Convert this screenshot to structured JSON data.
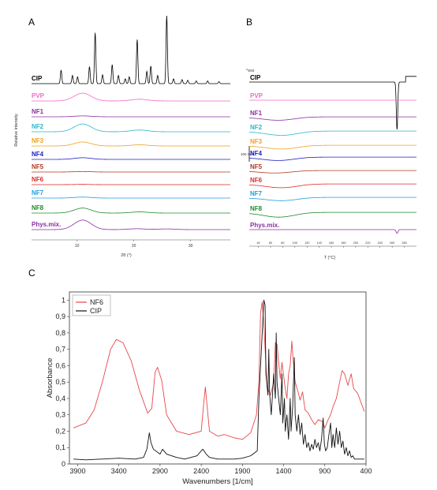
{
  "chart_data": [
    {
      "panel": "A",
      "type": "line",
      "xlabel": "2θ (°)",
      "ylabel": "Relative intensity",
      "xlim": [
        2,
        37
      ],
      "x_ticks": [
        10,
        20,
        30
      ],
      "series": [
        {
          "name": "CIP",
          "color": "#000000",
          "peaks": [
            [
              7.2,
              0.2
            ],
            [
              9.2,
              0.12
            ],
            [
              10.1,
              0.1
            ],
            [
              12.2,
              0.25
            ],
            [
              13.2,
              0.75
            ],
            [
              14.5,
              0.13
            ],
            [
              16.2,
              0.28
            ],
            [
              17.3,
              0.12
            ],
            [
              18.5,
              0.07
            ],
            [
              19.2,
              0.1
            ],
            [
              20.6,
              0.65
            ],
            [
              22.3,
              0.18
            ],
            [
              23.0,
              0.26
            ],
            [
              24.2,
              0.12
            ],
            [
              25.8,
              1.0
            ],
            [
              27.0,
              0.07
            ],
            [
              28.5,
              0.06
            ],
            [
              29.5,
              0.05
            ],
            [
              31.0,
              0.04
            ],
            [
              33.0,
              0.04
            ],
            [
              35.0,
              0.03
            ]
          ]
        },
        {
          "name": "PVP",
          "color": "#f06ac8",
          "peaks": [
            [
              11.0,
              0.45
            ],
            [
              21.0,
              0.1
            ]
          ]
        },
        {
          "name": "NF1",
          "color": "#8a2fa0",
          "peaks": [
            [
              11.0,
              0.08
            ]
          ]
        },
        {
          "name": "NF2",
          "color": "#2ab7c9",
          "peaks": [
            [
              11.0,
              0.45
            ],
            [
              21.0,
              0.1
            ]
          ]
        },
        {
          "name": "NF3",
          "color": "#f0a020",
          "peaks": [
            [
              11.0,
              0.28
            ],
            [
              21.0,
              0.08
            ]
          ]
        },
        {
          "name": "NF4",
          "color": "#1c1cc8",
          "peaks": [
            [
              11.0,
              0.15
            ]
          ]
        },
        {
          "name": "NF5",
          "color": "#b03a20",
          "peaks": [
            [
              11.0,
              0.06
            ]
          ]
        },
        {
          "name": "NF6",
          "color": "#e02a2a",
          "peaks": [
            [
              11.0,
              0.04
            ]
          ]
        },
        {
          "name": "NF7",
          "color": "#1aa0e0",
          "peaks": [
            [
              11.0,
              0.12
            ]
          ]
        },
        {
          "name": "NF8",
          "color": "#1f8a2a",
          "peaks": [
            [
              11.0,
              0.35
            ],
            [
              21.0,
              0.08
            ]
          ]
        },
        {
          "name": "Phys.mix.",
          "color": "#8a2fa0",
          "peaks": [
            [
              11.0,
              0.55
            ],
            [
              20.6,
              0.05
            ],
            [
              25.8,
              0.04
            ]
          ]
        }
      ]
    },
    {
      "panel": "B",
      "type": "line",
      "xlabel": "T (°C)",
      "annotation_top": "^exo",
      "scale_bar_text": "100\nmW",
      "xlim": [
        25,
        300
      ],
      "x_ticks": [
        40,
        60,
        80,
        100,
        120,
        140,
        160,
        180,
        200,
        220,
        240,
        260,
        280
      ],
      "series": [
        {
          "name": "CIP",
          "color": "#000000",
          "events": [
            {
              "T": 268,
              "depth": 10.0,
              "width": 1.2
            }
          ],
          "step": [
            {
              "T": 282,
              "dy": -1.2
            }
          ]
        },
        {
          "name": "PVP",
          "color": "#f06ac8",
          "events": []
        },
        {
          "name": "NF1",
          "color": "#8a2fa0",
          "events": [
            {
              "T": 75,
              "depth": 0.6,
              "width": 25
            }
          ]
        },
        {
          "name": "NF2",
          "color": "#2ab7c9",
          "events": [
            {
              "T": 80,
              "depth": 0.8,
              "width": 25
            }
          ]
        },
        {
          "name": "NF3",
          "color": "#f0a020",
          "events": [
            {
              "T": 80,
              "depth": 0.7,
              "width": 25
            }
          ]
        },
        {
          "name": "NF4",
          "color": "#1c1cc8",
          "events": [
            {
              "T": 75,
              "depth": 0.6,
              "width": 25
            }
          ]
        },
        {
          "name": "NF5",
          "color": "#b03a20",
          "events": [
            {
              "T": 70,
              "depth": 0.4,
              "width": 25
            }
          ]
        },
        {
          "name": "NF6",
          "color": "#e02a2a",
          "events": [
            {
              "T": 80,
              "depth": 0.7,
              "width": 25
            }
          ]
        },
        {
          "name": "NF7",
          "color": "#1aa0e0",
          "events": [
            {
              "T": 80,
              "depth": 0.6,
              "width": 25
            }
          ]
        },
        {
          "name": "NF8",
          "color": "#1f8a2a",
          "events": [
            {
              "T": 75,
              "depth": 0.9,
              "width": 25
            }
          ]
        },
        {
          "name": "Phys.mix.",
          "color": "#8a2fa0",
          "events": [
            {
              "T": 268,
              "depth": 0.8,
              "width": 1.5
            }
          ]
        }
      ]
    },
    {
      "panel": "C",
      "type": "line",
      "xlabel": "Wavenumbers [1/cm]",
      "ylabel": "Absorbance",
      "xlim": [
        4000,
        400
      ],
      "ylim": [
        0,
        1.05
      ],
      "x_ticks": [
        3900,
        3400,
        2900,
        2400,
        1900,
        1400,
        900,
        400
      ],
      "y_ticks": [
        "0",
        "0,1",
        "0,2",
        "0,3",
        "0,4",
        "0,5",
        "0,6",
        "0,7",
        "0,8",
        "0,9",
        "1"
      ],
      "y_tick_values": [
        0,
        0.1,
        0.2,
        0.3,
        0.4,
        0.5,
        0.6,
        0.7,
        0.8,
        0.9,
        1.0
      ],
      "legend_position": "top-left",
      "series": [
        {
          "name": "NF6",
          "color": "#e8474a",
          "points": [
            [
              3950,
              0.22
            ],
            [
              3800,
              0.25
            ],
            [
              3700,
              0.33
            ],
            [
              3600,
              0.5
            ],
            [
              3500,
              0.7
            ],
            [
              3430,
              0.76
            ],
            [
              3350,
              0.74
            ],
            [
              3250,
              0.63
            ],
            [
              3150,
              0.45
            ],
            [
              3050,
              0.31
            ],
            [
              3000,
              0.34
            ],
            [
              2960,
              0.56
            ],
            [
              2930,
              0.59
            ],
            [
              2880,
              0.51
            ],
            [
              2820,
              0.3
            ],
            [
              2700,
              0.2
            ],
            [
              2550,
              0.18
            ],
            [
              2400,
              0.2
            ],
            [
              2370,
              0.37
            ],
            [
              2350,
              0.47
            ],
            [
              2330,
              0.36
            ],
            [
              2300,
              0.2
            ],
            [
              2200,
              0.17
            ],
            [
              2120,
              0.18
            ],
            [
              2000,
              0.16
            ],
            [
              1900,
              0.15
            ],
            [
              1800,
              0.19
            ],
            [
              1730,
              0.3
            ],
            [
              1700,
              0.5
            ],
            [
              1680,
              0.92
            ],
            [
              1660,
              0.99
            ],
            [
              1640,
              0.85
            ],
            [
              1600,
              0.47
            ],
            [
              1560,
              0.42
            ],
            [
              1520,
              0.5
            ],
            [
              1500,
              0.74
            ],
            [
              1480,
              0.73
            ],
            [
              1460,
              0.62
            ],
            [
              1440,
              0.52
            ],
            [
              1420,
              0.62
            ],
            [
              1400,
              0.54
            ],
            [
              1380,
              0.46
            ],
            [
              1360,
              0.4
            ],
            [
              1340,
              0.55
            ],
            [
              1320,
              0.6
            ],
            [
              1300,
              0.75
            ],
            [
              1285,
              0.64
            ],
            [
              1260,
              0.5
            ],
            [
              1230,
              0.45
            ],
            [
              1200,
              0.39
            ],
            [
              1170,
              0.44
            ],
            [
              1140,
              0.33
            ],
            [
              1100,
              0.31
            ],
            [
              1060,
              0.27
            ],
            [
              1020,
              0.24
            ],
            [
              980,
              0.27
            ],
            [
              930,
              0.26
            ],
            [
              900,
              0.22
            ],
            [
              860,
              0.27
            ],
            [
              830,
              0.3
            ],
            [
              800,
              0.35
            ],
            [
              760,
              0.4
            ],
            [
              720,
              0.5
            ],
            [
              690,
              0.57
            ],
            [
              660,
              0.55
            ],
            [
              620,
              0.48
            ],
            [
              580,
              0.55
            ],
            [
              550,
              0.46
            ],
            [
              500,
              0.43
            ],
            [
              450,
              0.36
            ],
            [
              420,
              0.32
            ]
          ]
        },
        {
          "name": "CIP",
          "color": "#111111",
          "points": [
            [
              3950,
              0.03
            ],
            [
              3800,
              0.025
            ],
            [
              3600,
              0.03
            ],
            [
              3400,
              0.035
            ],
            [
              3200,
              0.03
            ],
            [
              3100,
              0.04
            ],
            [
              3060,
              0.09
            ],
            [
              3030,
              0.19
            ],
            [
              3010,
              0.13
            ],
            [
              2980,
              0.09
            ],
            [
              2900,
              0.06
            ],
            [
              2870,
              0.09
            ],
            [
              2820,
              0.06
            ],
            [
              2700,
              0.04
            ],
            [
              2600,
              0.03
            ],
            [
              2450,
              0.05
            ],
            [
              2400,
              0.08
            ],
            [
              2380,
              0.09
            ],
            [
              2340,
              0.06
            ],
            [
              2300,
              0.04
            ],
            [
              2200,
              0.03
            ],
            [
              2000,
              0.03
            ],
            [
              1900,
              0.035
            ],
            [
              1800,
              0.05
            ],
            [
              1720,
              0.08
            ],
            [
              1700,
              0.4
            ],
            [
              1680,
              0.6
            ],
            [
              1660,
              0.8
            ],
            [
              1640,
              1.0
            ],
            [
              1625,
              0.97
            ],
            [
              1615,
              0.55
            ],
            [
              1590,
              0.42
            ],
            [
              1580,
              0.7
            ],
            [
              1570,
              0.43
            ],
            [
              1550,
              0.3
            ],
            [
              1520,
              0.55
            ],
            [
              1500,
              0.4
            ],
            [
              1490,
              0.8
            ],
            [
              1480,
              0.5
            ],
            [
              1460,
              0.4
            ],
            [
              1440,
              0.3
            ],
            [
              1420,
              0.55
            ],
            [
              1410,
              0.25
            ],
            [
              1390,
              0.4
            ],
            [
              1380,
              0.2
            ],
            [
              1360,
              0.3
            ],
            [
              1340,
              0.15
            ],
            [
              1320,
              0.4
            ],
            [
              1310,
              0.2
            ],
            [
              1290,
              0.35
            ],
            [
              1270,
              0.65
            ],
            [
              1260,
              0.3
            ],
            [
              1240,
              0.2
            ],
            [
              1220,
              0.3
            ],
            [
              1200,
              0.18
            ],
            [
              1180,
              0.25
            ],
            [
              1160,
              0.12
            ],
            [
              1140,
              0.18
            ],
            [
              1120,
              0.1
            ],
            [
              1100,
              0.13
            ],
            [
              1080,
              0.08
            ],
            [
              1060,
              0.12
            ],
            [
              1040,
              0.09
            ],
            [
              1020,
              0.15
            ],
            [
              1000,
              0.1
            ],
            [
              980,
              0.13
            ],
            [
              960,
              0.08
            ],
            [
              940,
              0.15
            ],
            [
              920,
              0.28
            ],
            [
              905,
              0.12
            ],
            [
              890,
              0.08
            ],
            [
              870,
              0.1
            ],
            [
              850,
              0.18
            ],
            [
              830,
              0.25
            ],
            [
              815,
              0.1
            ],
            [
              800,
              0.18
            ],
            [
              780,
              0.1
            ],
            [
              760,
              0.22
            ],
            [
              740,
              0.12
            ],
            [
              720,
              0.2
            ],
            [
              700,
              0.1
            ],
            [
              680,
              0.14
            ],
            [
              660,
              0.06
            ],
            [
              640,
              0.1
            ],
            [
              620,
              0.05
            ],
            [
              600,
              0.08
            ],
            [
              580,
              0.04
            ],
            [
              560,
              0.05
            ],
            [
              540,
              0.03
            ],
            [
              500,
              0.03
            ],
            [
              460,
              0.03
            ],
            [
              420,
              0.03
            ]
          ]
        }
      ]
    }
  ]
}
